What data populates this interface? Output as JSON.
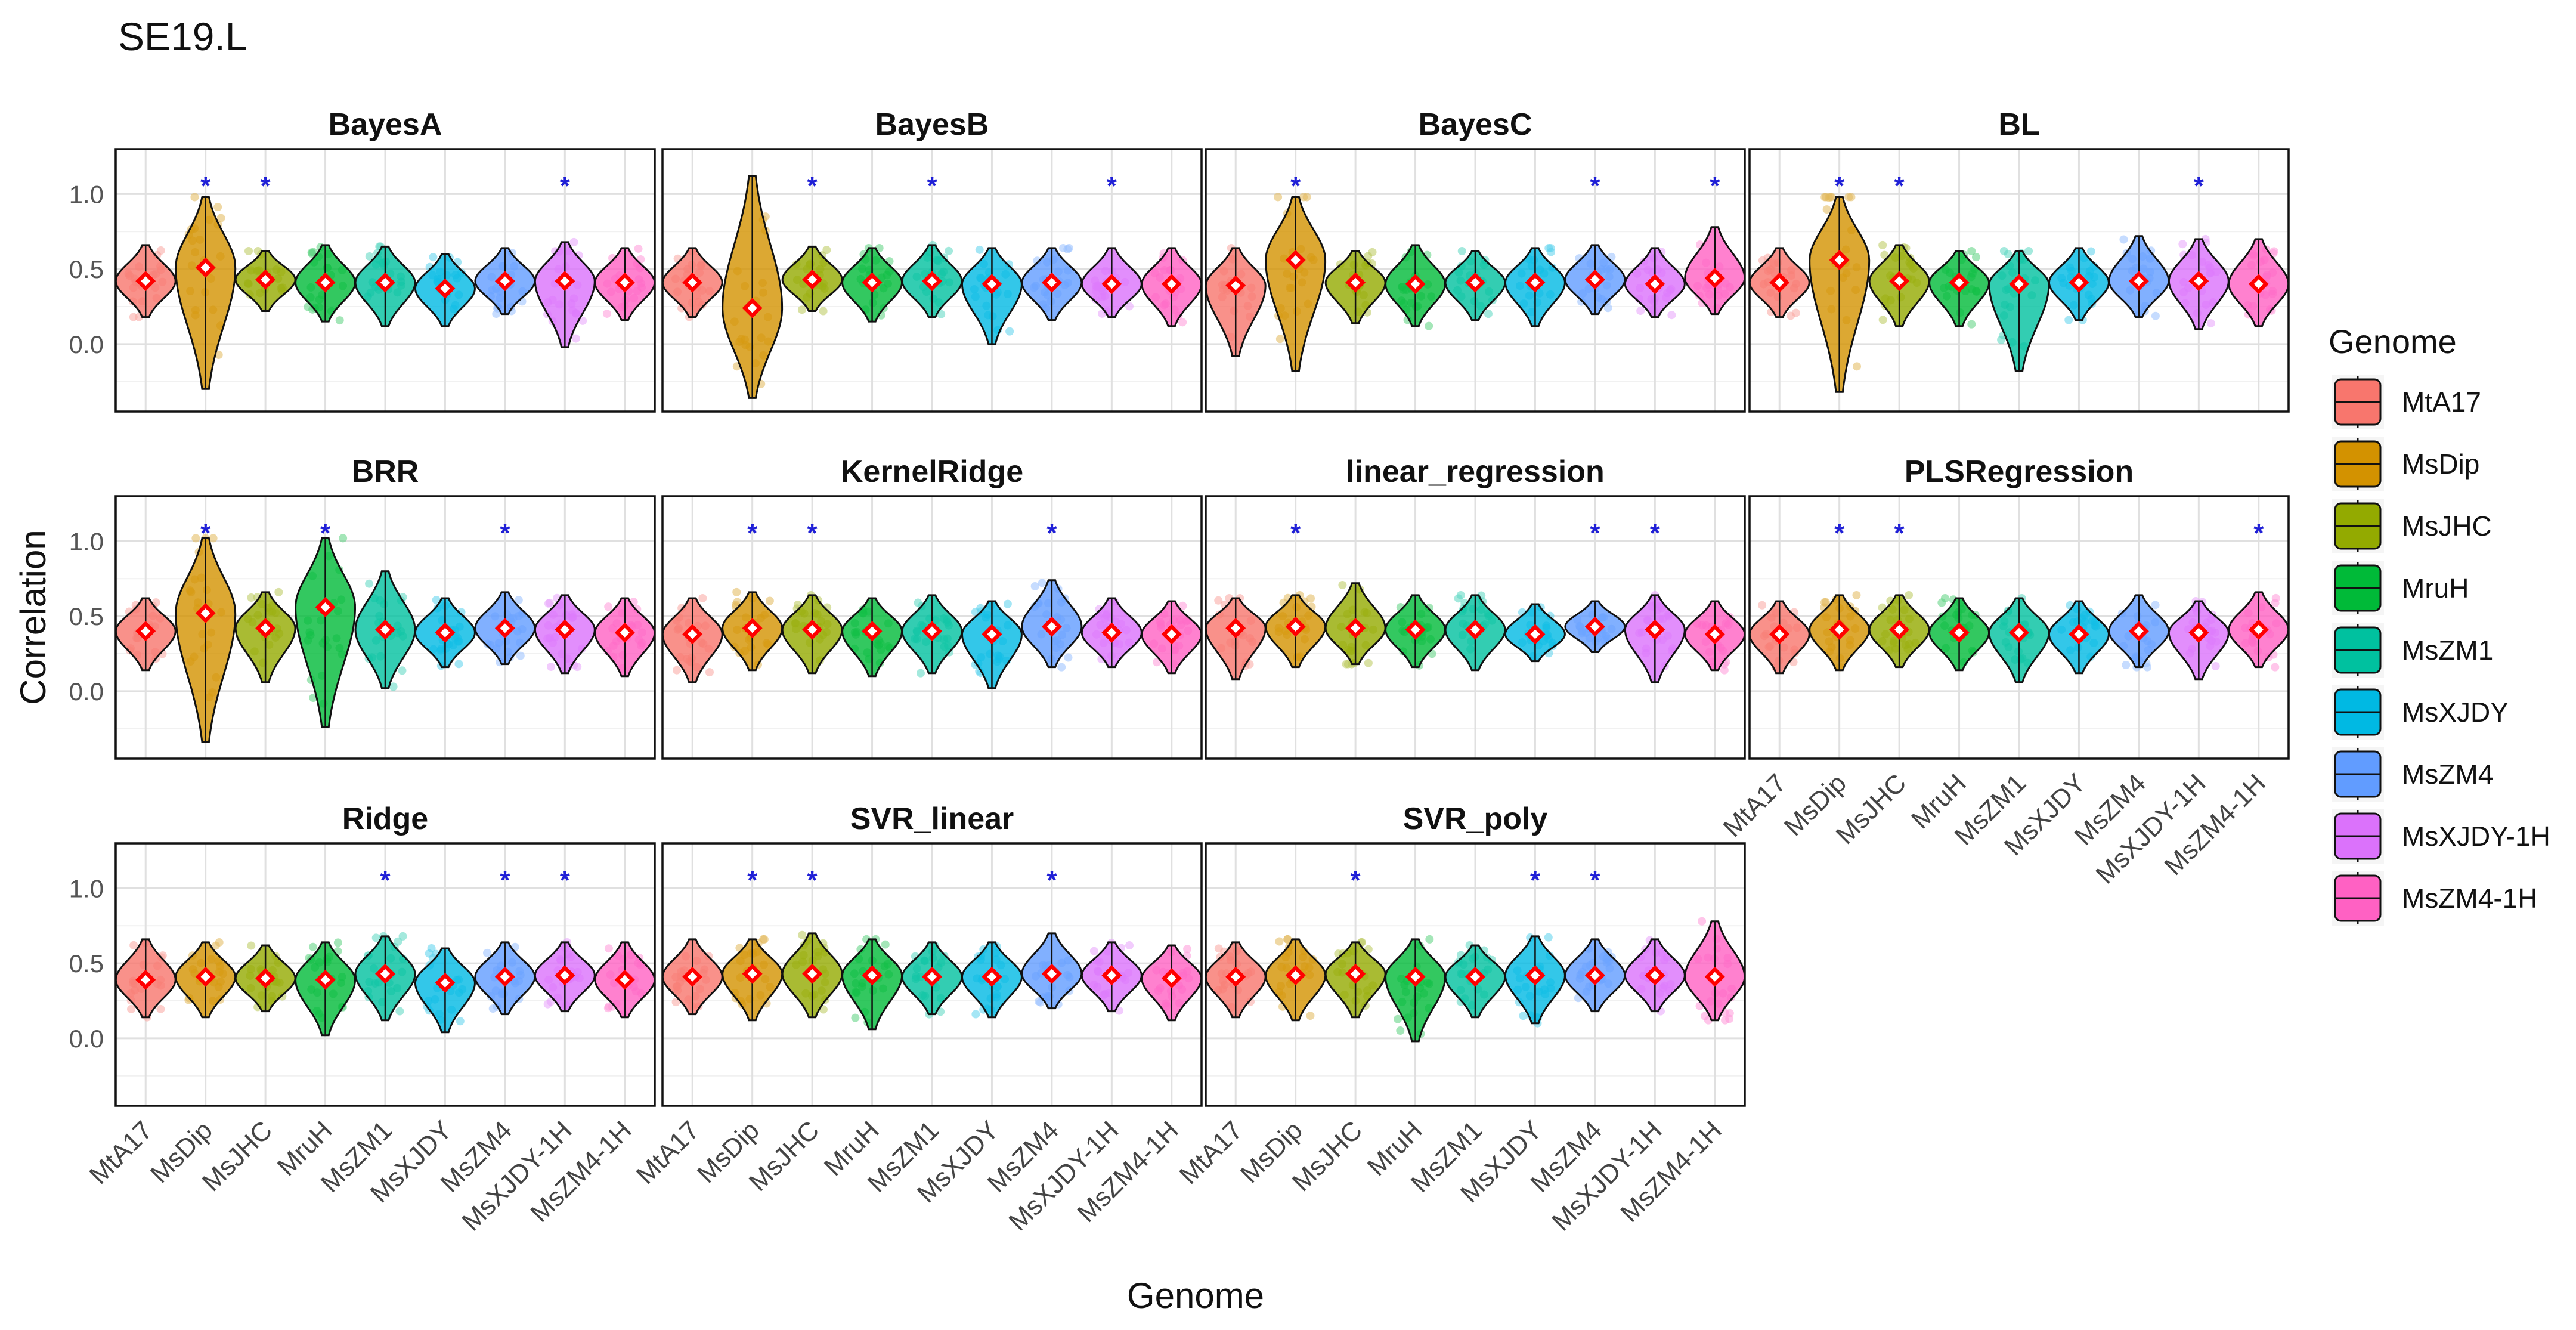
{
  "chart_data": {
    "type": "violin",
    "title": "SE19.L",
    "xlabel": "Genome",
    "ylabel": "Correlation",
    "ylim": [
      -0.45,
      1.3
    ],
    "yticks": [
      0.0,
      0.5,
      1.0
    ],
    "ytick_labels": [
      "0.0",
      "0.5",
      "1.0"
    ],
    "legend": {
      "title": "Genome",
      "position": "right"
    },
    "categories": [
      "MtA17",
      "MsDip",
      "MsJHC",
      "MruH",
      "MsZM1",
      "MsXJDY",
      "MsZM4",
      "MsXJDY-1H",
      "MsZM4-1H"
    ],
    "colors": [
      "#F8766D",
      "#D39200",
      "#93AA00",
      "#00BA38",
      "#00C19F",
      "#00B9E3",
      "#619CFF",
      "#DB72FB",
      "#FF61C3"
    ],
    "significance_marker": "*",
    "significance_color": "#1f1fd6",
    "mean_marker": "red diamond with white center",
    "panels": [
      {
        "name": "BayesA",
        "medians": [
          0.42,
          0.51,
          0.43,
          0.41,
          0.41,
          0.37,
          0.42,
          0.42,
          0.41
        ],
        "ranges": [
          [
            0.18,
            0.66
          ],
          [
            -0.3,
            0.98
          ],
          [
            0.22,
            0.62
          ],
          [
            0.15,
            0.66
          ],
          [
            0.12,
            0.65
          ],
          [
            0.12,
            0.6
          ],
          [
            0.2,
            0.64
          ],
          [
            -0.02,
            0.68
          ],
          [
            0.16,
            0.64
          ]
        ],
        "significant": [
          "MsDip",
          "MsJHC",
          "MsXJDY-1H"
        ]
      },
      {
        "name": "BayesB",
        "medians": [
          0.41,
          0.24,
          0.43,
          0.41,
          0.42,
          0.4,
          0.41,
          0.4,
          0.4
        ],
        "ranges": [
          [
            0.18,
            0.64
          ],
          [
            -0.36,
            1.12
          ],
          [
            0.22,
            0.65
          ],
          [
            0.15,
            0.64
          ],
          [
            0.18,
            0.66
          ],
          [
            0.0,
            0.64
          ],
          [
            0.16,
            0.64
          ],
          [
            0.18,
            0.64
          ],
          [
            0.12,
            0.64
          ]
        ],
        "significant": [
          "MsJHC",
          "MsZM1",
          "MsXJDY-1H"
        ]
      },
      {
        "name": "BayesC",
        "medians": [
          0.39,
          0.56,
          0.41,
          0.4,
          0.41,
          0.41,
          0.43,
          0.4,
          0.44
        ],
        "ranges": [
          [
            -0.08,
            0.64
          ],
          [
            -0.18,
            0.98
          ],
          [
            0.14,
            0.62
          ],
          [
            0.12,
            0.66
          ],
          [
            0.16,
            0.62
          ],
          [
            0.12,
            0.64
          ],
          [
            0.2,
            0.66
          ],
          [
            0.18,
            0.64
          ],
          [
            0.2,
            0.78
          ]
        ],
        "significant": [
          "MsDip",
          "MsZM4",
          "MsZM4-1H"
        ]
      },
      {
        "name": "BL",
        "medians": [
          0.41,
          0.56,
          0.42,
          0.41,
          0.4,
          0.41,
          0.42,
          0.42,
          0.4
        ],
        "ranges": [
          [
            0.18,
            0.64
          ],
          [
            -0.32,
            0.98
          ],
          [
            0.12,
            0.66
          ],
          [
            0.12,
            0.62
          ],
          [
            -0.18,
            0.62
          ],
          [
            0.16,
            0.64
          ],
          [
            0.18,
            0.72
          ],
          [
            0.1,
            0.7
          ],
          [
            0.12,
            0.7
          ]
        ],
        "significant": [
          "MsDip",
          "MsJHC",
          "MsXJDY-1H"
        ]
      },
      {
        "name": "BRR",
        "medians": [
          0.4,
          0.52,
          0.42,
          0.56,
          0.41,
          0.39,
          0.42,
          0.41,
          0.39
        ],
        "ranges": [
          [
            0.14,
            0.62
          ],
          [
            -0.34,
            1.02
          ],
          [
            0.06,
            0.66
          ],
          [
            -0.24,
            1.02
          ],
          [
            0.02,
            0.8
          ],
          [
            0.16,
            0.62
          ],
          [
            0.18,
            0.66
          ],
          [
            0.12,
            0.64
          ],
          [
            0.1,
            0.62
          ]
        ],
        "significant": [
          "MsDip",
          "MruH",
          "MsZM4"
        ]
      },
      {
        "name": "KernelRidge",
        "medians": [
          0.38,
          0.42,
          0.41,
          0.4,
          0.4,
          0.38,
          0.43,
          0.39,
          0.38
        ],
        "ranges": [
          [
            0.06,
            0.62
          ],
          [
            0.14,
            0.66
          ],
          [
            0.12,
            0.64
          ],
          [
            0.1,
            0.62
          ],
          [
            0.12,
            0.64
          ],
          [
            0.02,
            0.6
          ],
          [
            0.16,
            0.74
          ],
          [
            0.16,
            0.62
          ],
          [
            0.12,
            0.6
          ]
        ],
        "significant": [
          "MsDip",
          "MsJHC",
          "MsZM4"
        ]
      },
      {
        "name": "linear_regression",
        "medians": [
          0.42,
          0.43,
          0.42,
          0.41,
          0.41,
          0.38,
          0.43,
          0.41,
          0.38
        ],
        "ranges": [
          [
            0.08,
            0.62
          ],
          [
            0.16,
            0.64
          ],
          [
            0.18,
            0.72
          ],
          [
            0.16,
            0.64
          ],
          [
            0.14,
            0.64
          ],
          [
            0.2,
            0.58
          ],
          [
            0.26,
            0.6
          ],
          [
            0.06,
            0.64
          ],
          [
            0.14,
            0.6
          ]
        ],
        "significant": [
          "MsDip",
          "MsZM4",
          "MsXJDY-1H"
        ]
      },
      {
        "name": "PLSRegression",
        "medians": [
          0.38,
          0.41,
          0.41,
          0.39,
          0.39,
          0.38,
          0.4,
          0.39,
          0.41
        ],
        "ranges": [
          [
            0.12,
            0.6
          ],
          [
            0.14,
            0.64
          ],
          [
            0.16,
            0.64
          ],
          [
            0.14,
            0.62
          ],
          [
            0.06,
            0.62
          ],
          [
            0.12,
            0.6
          ],
          [
            0.16,
            0.64
          ],
          [
            0.08,
            0.6
          ],
          [
            0.16,
            0.66
          ]
        ],
        "significant": [
          "MsDip",
          "MsJHC",
          "MsZM4-1H"
        ]
      },
      {
        "name": "Ridge",
        "medians": [
          0.39,
          0.41,
          0.4,
          0.39,
          0.43,
          0.37,
          0.41,
          0.42,
          0.39
        ],
        "ranges": [
          [
            0.14,
            0.66
          ],
          [
            0.14,
            0.64
          ],
          [
            0.18,
            0.62
          ],
          [
            0.02,
            0.64
          ],
          [
            0.12,
            0.68
          ],
          [
            0.04,
            0.6
          ],
          [
            0.16,
            0.64
          ],
          [
            0.18,
            0.64
          ],
          [
            0.14,
            0.64
          ]
        ],
        "significant": [
          "MsZM1",
          "MsZM4",
          "MsXJDY-1H"
        ]
      },
      {
        "name": "SVR_linear",
        "medians": [
          0.41,
          0.43,
          0.43,
          0.42,
          0.41,
          0.41,
          0.43,
          0.42,
          0.4
        ],
        "ranges": [
          [
            0.16,
            0.66
          ],
          [
            0.12,
            0.66
          ],
          [
            0.14,
            0.7
          ],
          [
            0.06,
            0.66
          ],
          [
            0.16,
            0.64
          ],
          [
            0.14,
            0.64
          ],
          [
            0.2,
            0.7
          ],
          [
            0.18,
            0.64
          ],
          [
            0.12,
            0.62
          ]
        ],
        "significant": [
          "MsDip",
          "MsJHC",
          "MsZM4"
        ]
      },
      {
        "name": "SVR_poly",
        "medians": [
          0.41,
          0.42,
          0.43,
          0.41,
          0.41,
          0.42,
          0.42,
          0.42,
          0.41
        ],
        "ranges": [
          [
            0.14,
            0.64
          ],
          [
            0.12,
            0.66
          ],
          [
            0.14,
            0.64
          ],
          [
            -0.02,
            0.66
          ],
          [
            0.14,
            0.62
          ],
          [
            0.1,
            0.68
          ],
          [
            0.18,
            0.66
          ],
          [
            0.18,
            0.66
          ],
          [
            0.12,
            0.78
          ]
        ],
        "significant": [
          "MsJHC",
          "MsXJDY",
          "MsZM4"
        ]
      }
    ]
  }
}
